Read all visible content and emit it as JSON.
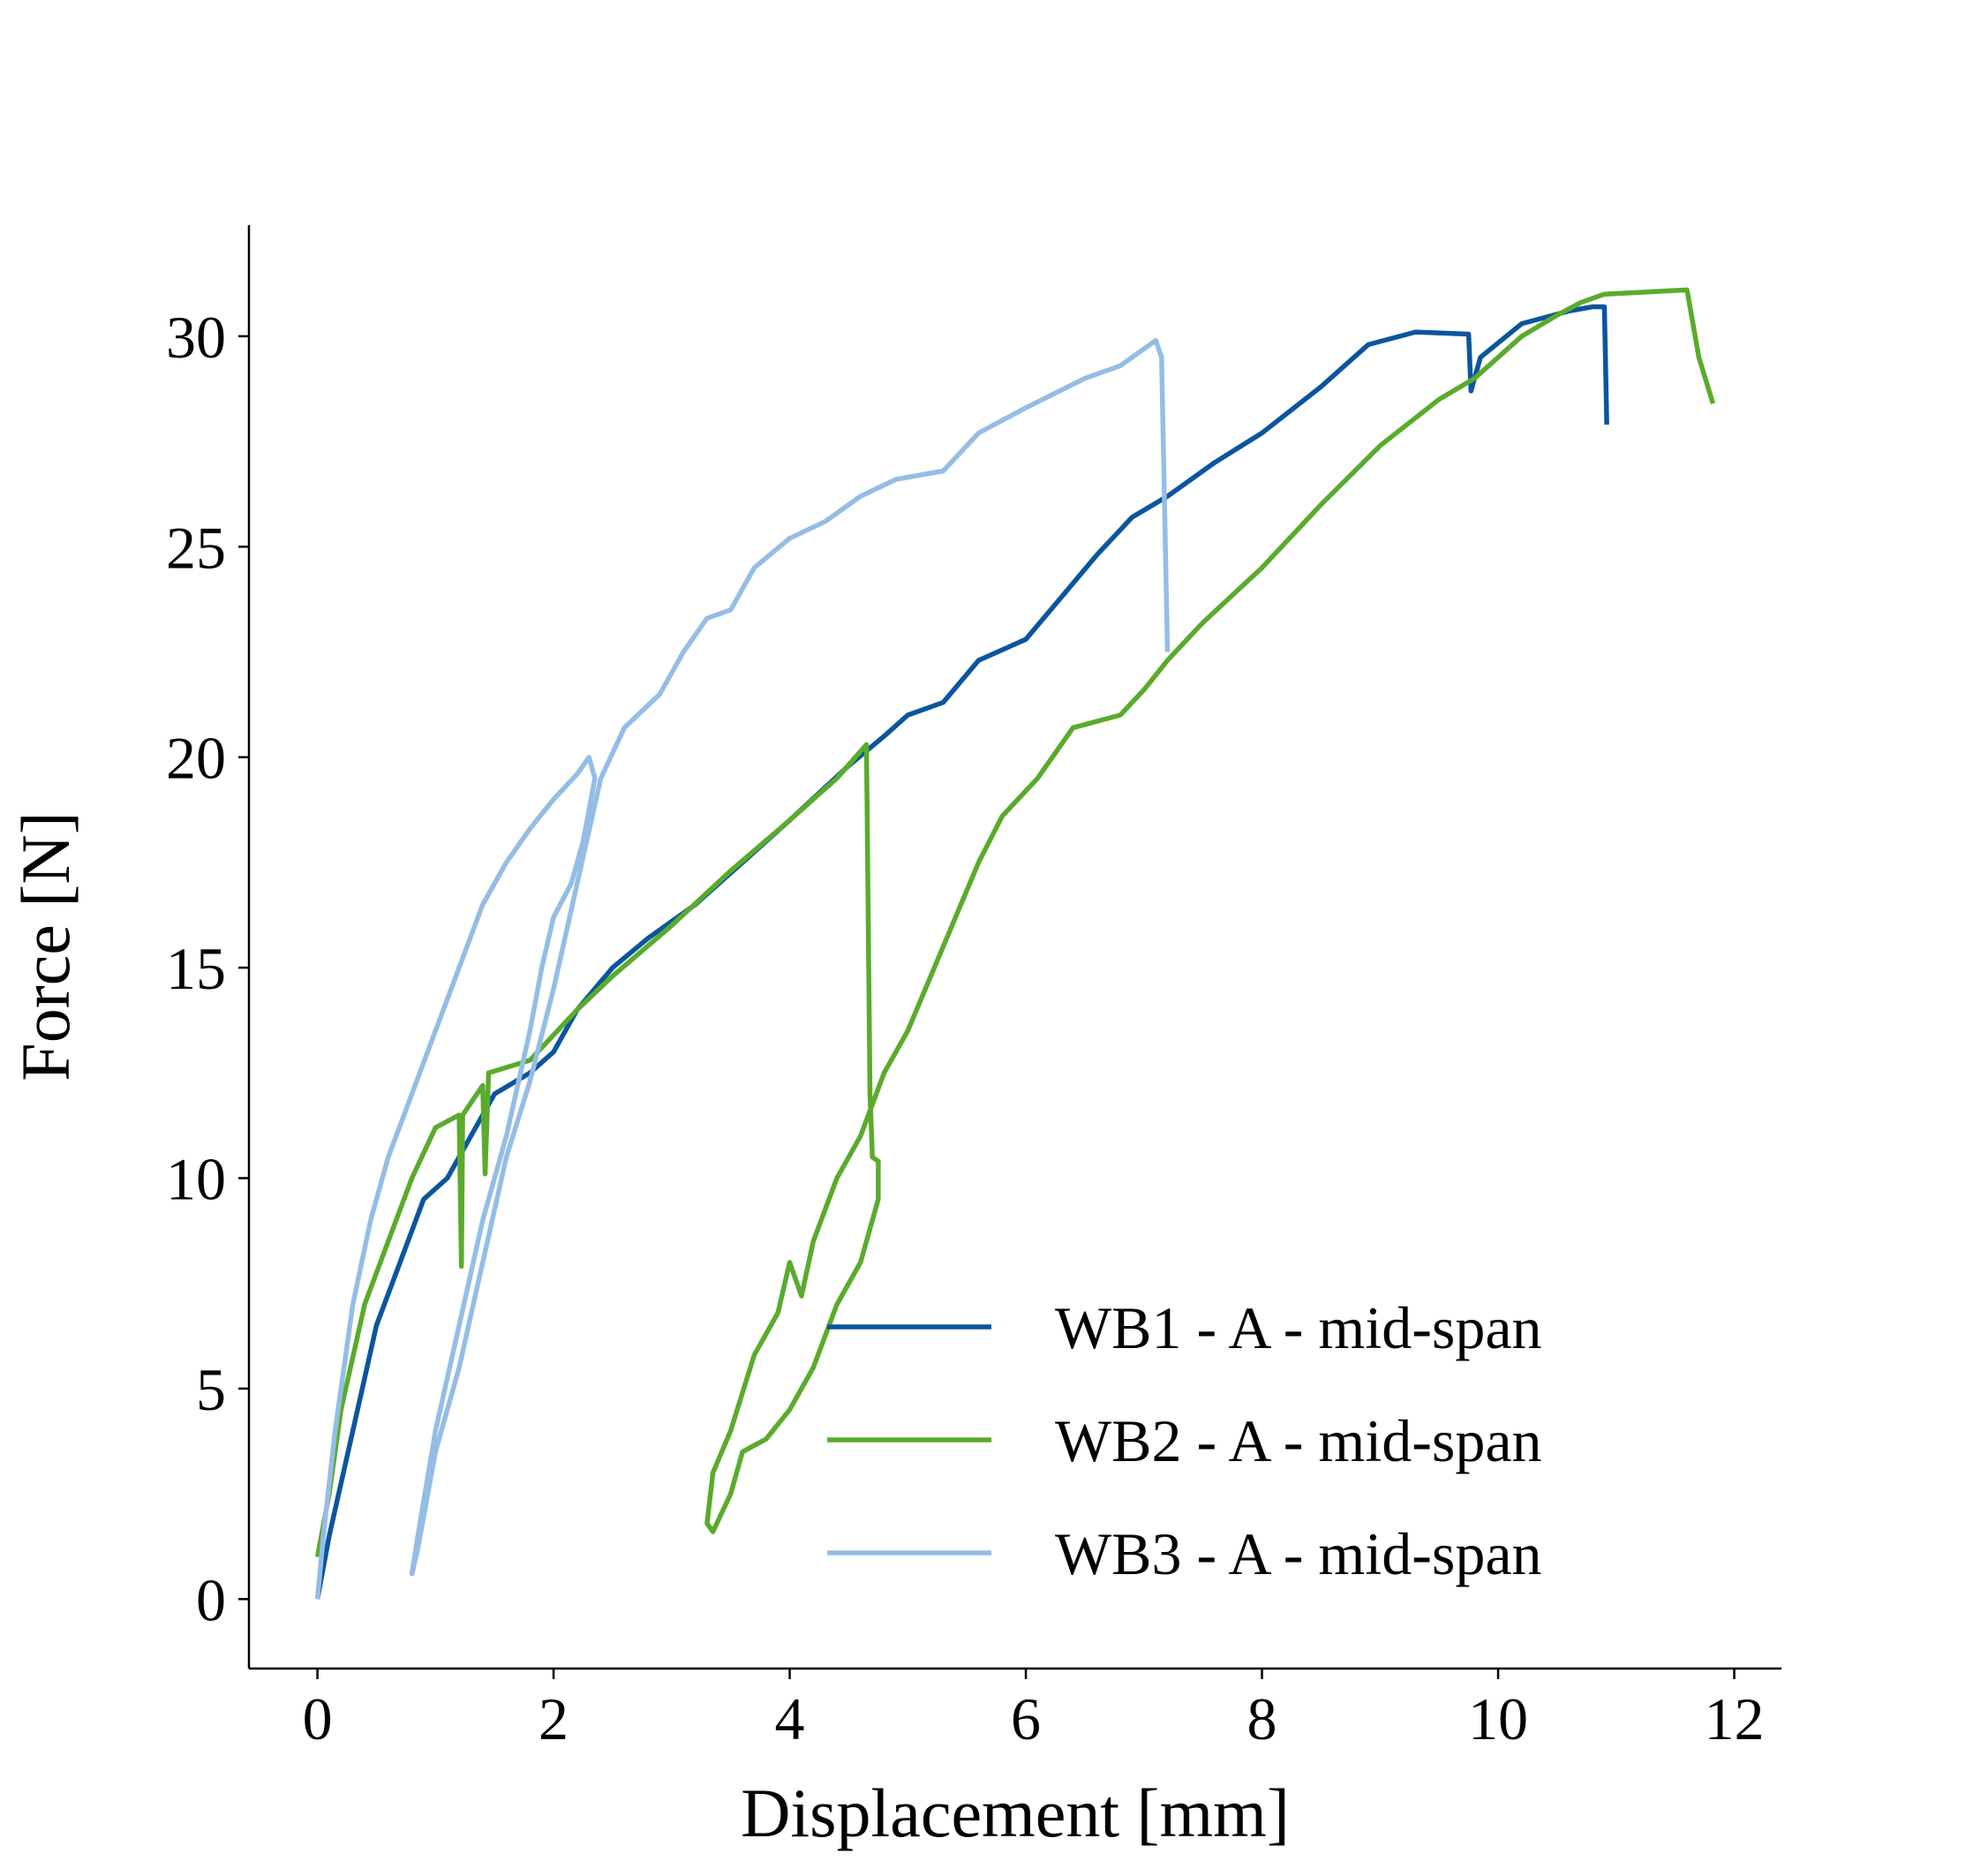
{
  "chart_data": {
    "type": "line",
    "xlabel": "Displacement [mm]",
    "ylabel": "Force [N]",
    "xlim": [
      -0.58,
      12.4
    ],
    "ylim": [
      -1.65,
      32.64
    ],
    "xticks": [
      0,
      2,
      4,
      6,
      8,
      10,
      12
    ],
    "yticks": [
      0,
      5,
      10,
      15,
      20,
      25,
      30
    ],
    "grid": false,
    "legend_position": "lower right",
    "series": [
      {
        "name": "WB1 - A - mid-span",
        "color": "#0b559f",
        "x": [
          0,
          0.1,
          0.3,
          0.5,
          0.7,
          0.9,
          1.1,
          1.3,
          1.5,
          1.8,
          2.0,
          2.2,
          2.5,
          2.8,
          3.2,
          3.6,
          4.0,
          4.5,
          4.8,
          5.0,
          5.3,
          5.6,
          6.0,
          6.3,
          6.6,
          6.9,
          7.2,
          7.6,
          8.0,
          8.5,
          8.9,
          9.3,
          9.75,
          9.77,
          9.85,
          10.2,
          10.6,
          10.8,
          10.9,
          10.92
        ],
        "values": [
          0,
          1.5,
          4,
          6.5,
          8,
          9.5,
          10,
          11,
          12,
          12.5,
          13,
          14,
          15,
          15.7,
          16.5,
          17.5,
          18.5,
          19.8,
          20.5,
          21,
          21.3,
          22.3,
          22.8,
          23.8,
          24.8,
          25.7,
          26.2,
          27,
          27.7,
          28.8,
          29.8,
          30.1,
          30.05,
          28.7,
          29.5,
          30.3,
          30.6,
          30.7,
          30.7,
          27.9
        ]
      },
      {
        "name": "WB2 - A - mid-span",
        "color": "#5aab2c",
        "x": [
          0,
          0.1,
          0.2,
          0.4,
          0.6,
          0.8,
          1.0,
          1.2,
          1.22,
          1.23,
          1.4,
          1.42,
          1.45,
          1.8,
          2.2,
          2.5,
          3.0,
          3.5,
          4.0,
          4.4,
          4.65,
          4.68,
          4.7,
          4.75,
          4.75,
          4.6,
          4.4,
          4.2,
          4.0,
          3.8,
          3.6,
          3.5,
          3.35,
          3.3,
          3.35,
          3.5,
          3.7,
          3.9,
          4.0,
          4.1,
          4.2,
          4.4,
          4.6,
          4.8,
          5.0,
          5.3,
          5.6,
          5.8,
          6.1,
          6.4,
          6.8,
          7.0,
          7.2,
          7.5,
          8.0,
          8.5,
          9.0,
          9.5,
          9.8,
          10.2,
          10.5,
          10.7,
          10.9,
          11.6,
          11.7,
          11.82
        ],
        "values": [
          1,
          2.5,
          4.5,
          7,
          8.5,
          10,
          11.2,
          11.5,
          7.9,
          11.5,
          12.2,
          10.1,
          12.5,
          12.8,
          14,
          14.8,
          16,
          17.3,
          18.5,
          19.5,
          20.3,
          12,
          10.5,
          10.4,
          9.5,
          8,
          7,
          5.5,
          4.5,
          3.8,
          3.5,
          2.5,
          1.6,
          1.8,
          3,
          4,
          5.8,
          6.8,
          8,
          7.2,
          8.5,
          10,
          11,
          12.5,
          13.5,
          15.5,
          17.5,
          18.6,
          19.5,
          20.7,
          21,
          21.6,
          22.3,
          23.2,
          24.5,
          26,
          27.4,
          28.5,
          29,
          30,
          30.5,
          30.8,
          31,
          31.1,
          29.5,
          28.4
        ]
      },
      {
        "name": "WB3 - A - mid-span",
        "color": "#94bde6",
        "x": [
          0,
          0.05,
          0.15,
          0.3,
          0.45,
          0.6,
          0.8,
          1.0,
          1.2,
          1.4,
          1.6,
          1.8,
          2.0,
          2.2,
          2.3,
          2.35,
          2.25,
          2.15,
          2.0,
          1.9,
          1.8,
          1.6,
          1.4,
          1.2,
          1.0,
          0.85,
          0.8,
          0.85,
          1.0,
          1.2,
          1.4,
          1.6,
          1.8,
          2.0,
          2.2,
          2.4,
          2.6,
          2.9,
          3.1,
          3.3,
          3.5,
          3.7,
          4.0,
          4.3,
          4.6,
          4.9,
          5.3,
          5.6,
          6.0,
          6.5,
          6.8,
          7.1,
          7.15,
          7.2
        ],
        "values": [
          0,
          1.5,
          4,
          7,
          9,
          10.5,
          12,
          13.5,
          15,
          16.5,
          17.5,
          18.3,
          19,
          19.6,
          20,
          19.5,
          18,
          17,
          16.2,
          15,
          13.5,
          11,
          9,
          6.5,
          4,
          1.5,
          0.6,
          1.2,
          3.5,
          5.5,
          8,
          10.5,
          12.3,
          14.5,
          17,
          19.5,
          20.7,
          21.5,
          22.5,
          23.3,
          23.5,
          24.5,
          25.2,
          25.6,
          26.2,
          26.6,
          26.8,
          27.7,
          28.3,
          29,
          29.3,
          29.9,
          29.5,
          22.5
        ]
      }
    ]
  }
}
